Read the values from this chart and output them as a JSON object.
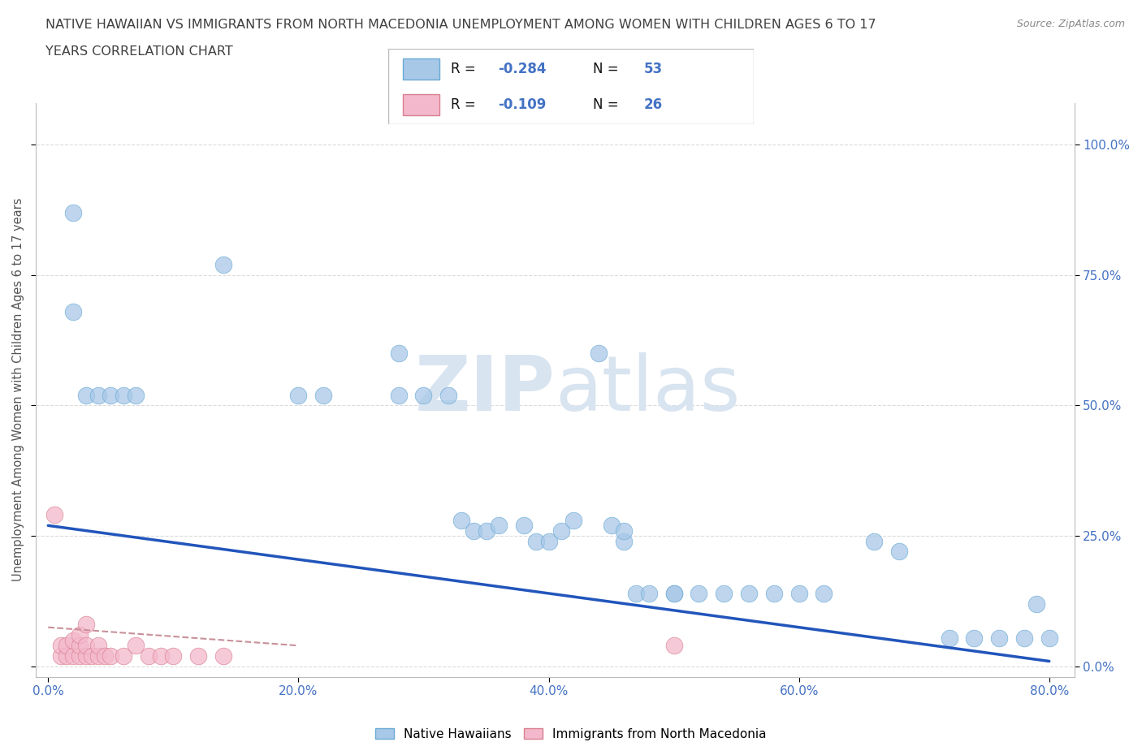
{
  "title_line1": "NATIVE HAWAIIAN VS IMMIGRANTS FROM NORTH MACEDONIA UNEMPLOYMENT AMONG WOMEN WITH CHILDREN AGES 6 TO 17",
  "title_line2": "YEARS CORRELATION CHART",
  "source": "Source: ZipAtlas.com",
  "xlabel_ticks": [
    "0.0%",
    "20.0%",
    "40.0%",
    "60.0%",
    "80.0%"
  ],
  "xlabel_tick_vals": [
    0.0,
    0.2,
    0.4,
    0.6,
    0.8
  ],
  "ylabel": "Unemployment Among Women with Children Ages 6 to 17 years",
  "ylabel_ticks": [
    "0.0%",
    "25.0%",
    "50.0%",
    "75.0%",
    "100.0%"
  ],
  "ylabel_tick_vals": [
    0.0,
    0.25,
    0.5,
    0.75,
    1.0
  ],
  "xlim": [
    -0.01,
    0.82
  ],
  "ylim": [
    -0.02,
    1.08
  ],
  "native_color": "#a8c8e8",
  "native_edge_color": "#6aaad4",
  "macedonia_color": "#f4b8cc",
  "macedonia_edge_color": "#d88090",
  "trendline_native_color": "#2255bb",
  "trendline_macedonia_color": "#c8909a",
  "watermark_color": "#d8e4f0",
  "grid_color": "#cccccc",
  "title_color": "#404040",
  "axis_label_color": "#555555",
  "tick_label_color": "#4472c4",
  "source_color": "#888888",
  "native_trend_x0": 0.0,
  "native_trend_y0": 0.27,
  "native_trend_x1": 0.8,
  "native_trend_y1": 0.01,
  "mac_trend_x0": 0.0,
  "mac_trend_y0": 0.075,
  "mac_trend_x1": 0.2,
  "mac_trend_y1": 0.04,
  "native_x": [
    0.02,
    0.02,
    0.03,
    0.04,
    0.05,
    0.06,
    0.07,
    0.14,
    0.2,
    0.22,
    0.28,
    0.28,
    0.3,
    0.32,
    0.33,
    0.34,
    0.35,
    0.36,
    0.38,
    0.39,
    0.4,
    0.41,
    0.42,
    0.44,
    0.45,
    0.46,
    0.46,
    0.47,
    0.48,
    0.5,
    0.5,
    0.52,
    0.54,
    0.56,
    0.58,
    0.6,
    0.62,
    0.66,
    0.68,
    0.72,
    0.74,
    0.76,
    0.78,
    0.79,
    0.8
  ],
  "native_y": [
    0.87,
    0.68,
    0.52,
    0.52,
    0.52,
    0.52,
    0.52,
    0.77,
    0.52,
    0.52,
    0.6,
    0.52,
    0.52,
    0.52,
    0.28,
    0.26,
    0.26,
    0.27,
    0.27,
    0.24,
    0.24,
    0.26,
    0.28,
    0.6,
    0.27,
    0.24,
    0.26,
    0.14,
    0.14,
    0.14,
    0.14,
    0.14,
    0.14,
    0.14,
    0.14,
    0.14,
    0.14,
    0.24,
    0.22,
    0.055,
    0.055,
    0.055,
    0.055,
    0.12,
    0.055
  ],
  "macedonia_x": [
    0.005,
    0.01,
    0.01,
    0.015,
    0.015,
    0.02,
    0.02,
    0.025,
    0.025,
    0.025,
    0.03,
    0.03,
    0.03,
    0.035,
    0.04,
    0.04,
    0.045,
    0.05,
    0.06,
    0.07,
    0.08,
    0.09,
    0.1,
    0.12,
    0.14,
    0.5
  ],
  "macedonia_y": [
    0.29,
    0.02,
    0.04,
    0.02,
    0.04,
    0.02,
    0.05,
    0.02,
    0.04,
    0.06,
    0.02,
    0.04,
    0.08,
    0.02,
    0.02,
    0.04,
    0.02,
    0.02,
    0.02,
    0.04,
    0.02,
    0.02,
    0.02,
    0.02,
    0.02,
    0.04
  ]
}
